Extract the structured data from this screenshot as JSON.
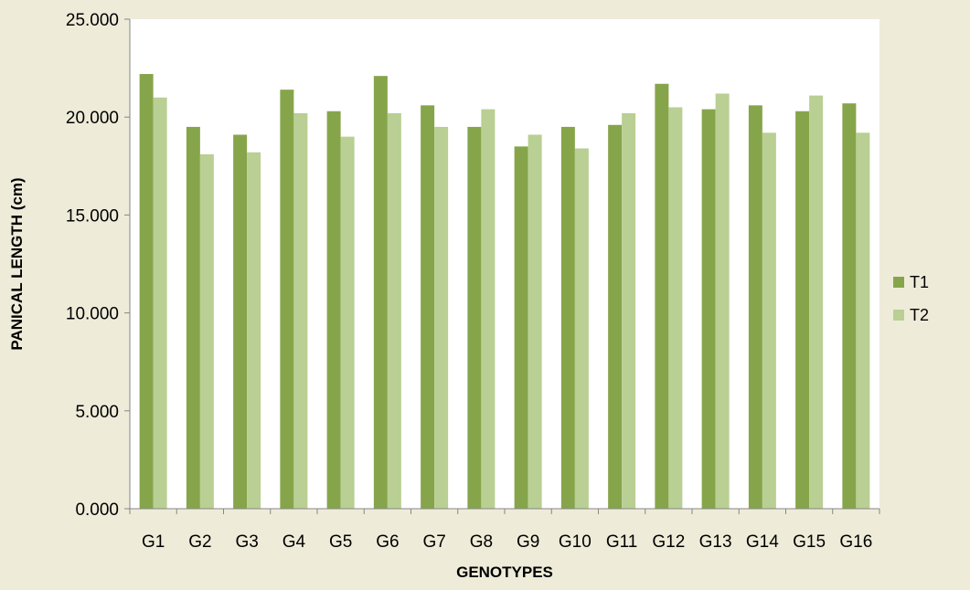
{
  "chart_data": {
    "type": "bar",
    "title": "",
    "xlabel": "GENOTYPES",
    "ylabel": "PANICAL LENGTH (cm)",
    "ylim": [
      0,
      25
    ],
    "y_ticks": [
      0,
      5,
      10,
      15,
      20,
      25
    ],
    "y_tick_labels": [
      "0.000",
      "5.000",
      "10.000",
      "15.000",
      "20.000",
      "25.000"
    ],
    "grid": false,
    "legend_position": "right",
    "categories": [
      "G1",
      "G2",
      "G3",
      "G4",
      "G5",
      "G6",
      "G7",
      "G8",
      "G9",
      "G10",
      "G11",
      "G12",
      "G13",
      "G14",
      "G15",
      "G16"
    ],
    "series": [
      {
        "name": "T1",
        "color": "#86a54a",
        "values": [
          22.2,
          19.5,
          19.1,
          21.4,
          20.3,
          22.1,
          20.6,
          19.5,
          18.5,
          19.5,
          19.6,
          21.7,
          20.4,
          20.6,
          20.3,
          20.7
        ]
      },
      {
        "name": "T2",
        "color": "#b9cf93",
        "values": [
          21.0,
          18.1,
          18.2,
          20.2,
          19.0,
          20.2,
          19.5,
          20.4,
          19.1,
          18.4,
          20.2,
          20.5,
          21.2,
          19.2,
          21.1,
          19.2
        ]
      }
    ],
    "plot_background": "#ffffff",
    "page_background": "#eeecd9"
  }
}
